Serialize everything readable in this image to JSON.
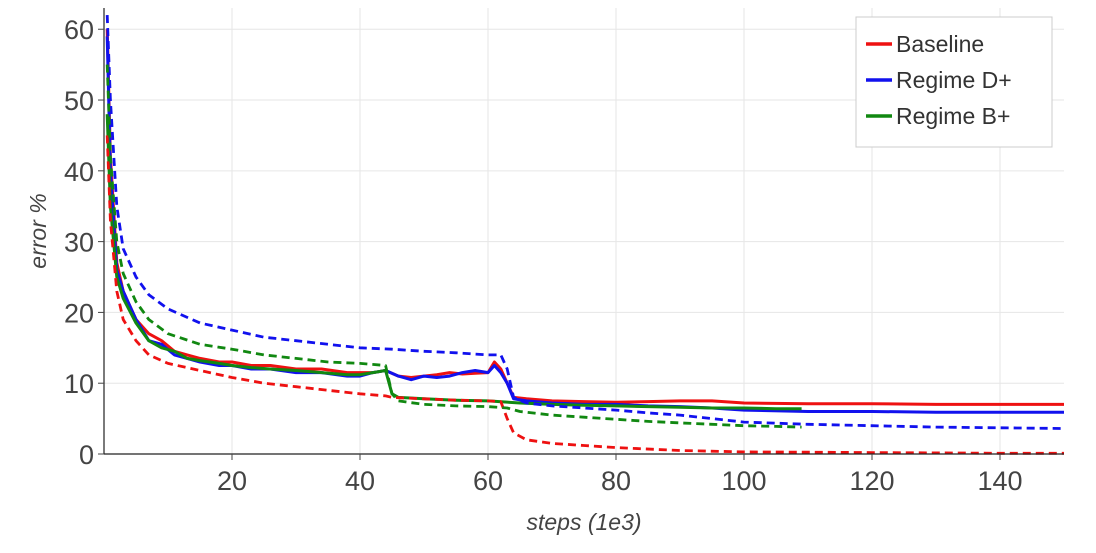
{
  "chart_data": {
    "type": "line",
    "title": "",
    "xlabel": "steps (1e3)",
    "ylabel": "error %",
    "xlim": [
      0,
      150
    ],
    "ylim": [
      0,
      63
    ],
    "x_ticks": [
      20,
      40,
      60,
      80,
      100,
      120,
      140
    ],
    "y_ticks": [
      0,
      10,
      20,
      30,
      40,
      50,
      60
    ],
    "grid": true,
    "legend_position": "top-right",
    "series": [
      {
        "name": "Baseline",
        "color": "#ee1111",
        "style": "solid",
        "x": [
          0.5,
          1,
          2,
          3,
          5,
          7,
          9,
          11,
          13,
          15,
          18,
          20,
          23,
          26,
          30,
          34,
          38,
          40,
          42,
          44,
          46,
          48,
          50,
          52,
          54,
          56,
          58,
          60,
          61,
          62,
          63,
          64,
          66,
          70,
          75,
          80,
          85,
          90,
          95,
          100,
          110,
          120,
          130,
          140,
          150
        ],
        "y": [
          60,
          42,
          27,
          23,
          19,
          17,
          16,
          14.5,
          14,
          13.5,
          13,
          13,
          12.5,
          12.5,
          12,
          12,
          11.5,
          11.5,
          11.5,
          11.8,
          11,
          10.8,
          11,
          11.2,
          11.5,
          11.3,
          11.4,
          11.5,
          13,
          12,
          10,
          8,
          7.8,
          7.5,
          7.4,
          7.3,
          7.4,
          7.5,
          7.5,
          7.2,
          7.1,
          7.1,
          7.0,
          7.0,
          7.0
        ]
      },
      {
        "name": "Regime D+",
        "color": "#1111ee",
        "style": "solid",
        "x": [
          0.5,
          1,
          2,
          3,
          5,
          7,
          9,
          11,
          13,
          15,
          18,
          20,
          23,
          26,
          30,
          34,
          38,
          40,
          42,
          44,
          46,
          48,
          50,
          52,
          54,
          56,
          58,
          60,
          61,
          62,
          63,
          64,
          66,
          70,
          75,
          80,
          85,
          90,
          95,
          100,
          110,
          120,
          130,
          140,
          150
        ],
        "y": [
          59,
          40,
          26,
          23,
          19,
          16,
          15.5,
          14,
          13.5,
          13,
          12.5,
          12.5,
          12,
          12,
          11.5,
          11.5,
          11,
          11,
          11.5,
          11.8,
          11,
          10.5,
          11,
          10.8,
          11,
          11.5,
          11.8,
          11.5,
          12.5,
          11.5,
          10,
          7.8,
          7.5,
          7.2,
          7.0,
          7.0,
          6.8,
          6.7,
          6.5,
          6.2,
          6.0,
          6.0,
          5.9,
          5.9,
          5.9
        ]
      },
      {
        "name": "Regime B+",
        "color": "#118811",
        "style": "solid",
        "x": [
          0.5,
          1,
          2,
          3,
          5,
          7,
          9,
          11,
          13,
          15,
          18,
          20,
          23,
          26,
          30,
          34,
          38,
          40,
          42,
          44,
          45,
          46,
          50,
          55,
          60,
          65,
          70,
          75,
          80,
          85,
          90,
          95,
          100,
          105,
          109
        ],
        "y": [
          48,
          35,
          25,
          22,
          18.5,
          16,
          15,
          14.5,
          13.5,
          13.2,
          12.8,
          12.5,
          12.2,
          12,
          11.8,
          11.5,
          11.2,
          11.2,
          11.5,
          11.8,
          8.5,
          8.0,
          7.8,
          7.6,
          7.5,
          7.2,
          7.0,
          6.9,
          6.8,
          6.7,
          6.6,
          6.5,
          6.5,
          6.4,
          6.4
        ]
      },
      {
        "name": "",
        "color": "#ee1111",
        "style": "dashed",
        "x": [
          0.5,
          1,
          2,
          3,
          5,
          7,
          10,
          15,
          20,
          25,
          30,
          35,
          40,
          44,
          45,
          50,
          55,
          60,
          62,
          63,
          64,
          66,
          70,
          75,
          80,
          90,
          100,
          110,
          120,
          130,
          140,
          150
        ],
        "y": [
          45,
          33,
          23,
          19,
          16,
          14,
          12.8,
          11.8,
          10.8,
          10,
          9.5,
          9,
          8.5,
          8.2,
          8.0,
          7.8,
          7.6,
          7.5,
          7.4,
          5,
          3,
          2,
          1.5,
          1.2,
          0.9,
          0.5,
          0.3,
          0.25,
          0.2,
          0.15,
          0.1,
          0.1
        ]
      },
      {
        "name": "",
        "color": "#1111ee",
        "style": "dashed",
        "x": [
          0.5,
          1,
          2,
          3,
          5,
          7,
          10,
          15,
          20,
          25,
          30,
          35,
          40,
          45,
          50,
          55,
          60,
          62,
          63,
          64,
          66,
          70,
          75,
          80,
          85,
          90,
          95,
          100,
          110,
          120,
          130,
          140,
          150
        ],
        "y": [
          62,
          50,
          35,
          29,
          25,
          22.5,
          20.5,
          18.5,
          17.5,
          16.5,
          16,
          15.5,
          15,
          14.8,
          14.5,
          14.3,
          14,
          14,
          12,
          8,
          7.2,
          6.8,
          6.5,
          6.2,
          5.8,
          5.5,
          5.0,
          4.5,
          4.2,
          4.0,
          3.8,
          3.7,
          3.6
        ]
      },
      {
        "name": "",
        "color": "#118811",
        "style": "dashed",
        "x": [
          0.5,
          1,
          2,
          3,
          5,
          7,
          10,
          15,
          20,
          25,
          30,
          35,
          40,
          44,
          45,
          46,
          50,
          55,
          60,
          63,
          65,
          70,
          75,
          80,
          85,
          90,
          95,
          100,
          105,
          109
        ],
        "y": [
          55,
          42,
          30,
          25.5,
          21.5,
          19,
          17,
          15.5,
          14.8,
          14,
          13.5,
          13,
          12.8,
          12.5,
          8.5,
          7.5,
          7,
          6.8,
          6.7,
          6.5,
          6,
          5.5,
          5.2,
          4.9,
          4.6,
          4.4,
          4.2,
          4.0,
          3.9,
          3.8
        ]
      }
    ]
  }
}
